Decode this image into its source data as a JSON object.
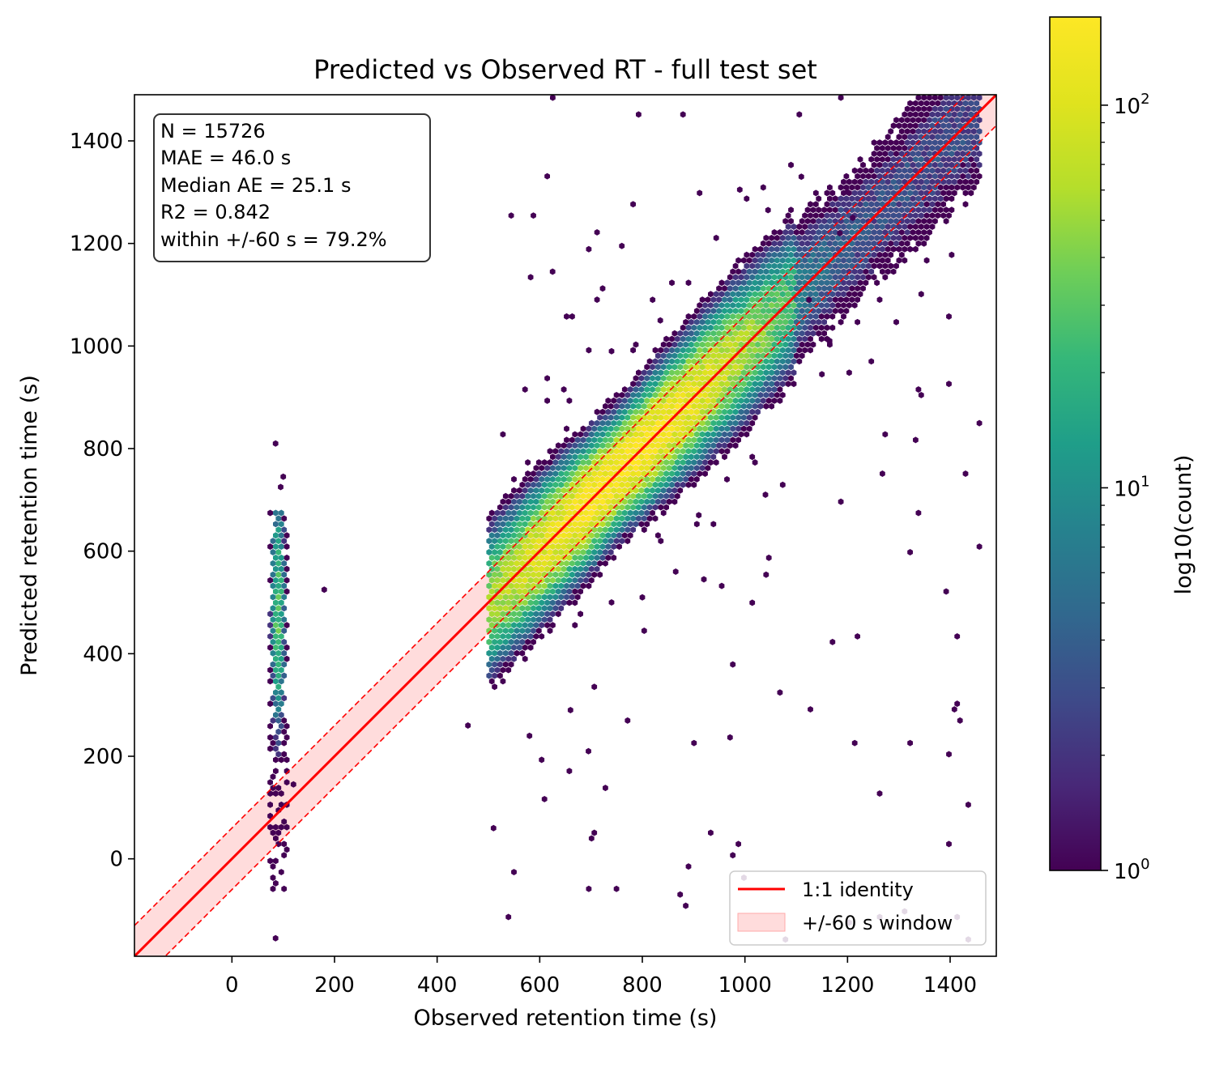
{
  "chart_data": {
    "type": "heatmap",
    "subtype": "hexbin",
    "title": "Predicted vs Observed RT - full test set",
    "xlabel": "Observed retention time (s)",
    "ylabel": "Predicted retention time (s)",
    "xlim": [
      -190,
      1490
    ],
    "ylim": [
      -190,
      1490
    ],
    "xticks": [
      0,
      200,
      400,
      600,
      800,
      1000,
      1200,
      1400
    ],
    "yticks": [
      0,
      200,
      400,
      600,
      800,
      1000,
      1200,
      1400
    ],
    "grid": false,
    "colormap": "viridis",
    "colorbar": {
      "label": "log10(count)",
      "scale": "log",
      "range": [
        1,
        170
      ],
      "tick_labels": [
        "10",
        "10",
        "10"
      ],
      "tick_exponents": [
        "0",
        "1",
        "2"
      ],
      "tick_values": [
        1,
        10,
        100
      ]
    },
    "stats_box": {
      "location": "top-left",
      "lines": [
        "N = 15726",
        "MAE = 46.0 s",
        "Median AE = 25.1 s",
        "R2 = 0.842",
        "within +/-60 s = 79.2%"
      ]
    },
    "legend": {
      "location": "lower-right",
      "entries": [
        {
          "label": "1:1 identity",
          "kind": "line",
          "color": "#ff0000"
        },
        {
          "label": "+/-60 s window",
          "kind": "band",
          "color": "#ffcccc"
        }
      ]
    },
    "identity_line": {
      "slope": 1,
      "intercept": 0,
      "color": "#ff0000"
    },
    "window": {
      "half_width": 60,
      "fill": "#ffdcdc",
      "edge": "#ff0000"
    },
    "clusters": [
      {
        "name": "main-diagonal",
        "x_range": [
          500,
          1460
        ],
        "offset_spread": 45,
        "peak_count": 170
      },
      {
        "name": "early-eluting-column",
        "x_center": 90,
        "y_range": [
          -60,
          810
        ],
        "peak_count": 30
      }
    ],
    "outliers": [
      [
        625,
        1145
      ],
      [
        760,
        1195
      ],
      [
        990,
        1305
      ],
      [
        1045,
        1265
      ],
      [
        1110,
        1330
      ],
      [
        1200,
        1300
      ],
      [
        1210,
        1250
      ],
      [
        1185,
        1220
      ],
      [
        1165,
        1010
      ],
      [
        1150,
        945
      ],
      [
        1125,
        1090
      ],
      [
        865,
        560
      ],
      [
        1040,
        710
      ],
      [
        965,
        740
      ],
      [
        910,
        670
      ],
      [
        920,
        545
      ],
      [
        800,
        510
      ],
      [
        740,
        500
      ],
      [
        695,
        210
      ],
      [
        660,
        290
      ],
      [
        580,
        240
      ],
      [
        510,
        60
      ],
      [
        460,
        260
      ],
      [
        85,
        -155
      ],
      [
        180,
        525
      ],
      [
        120,
        145
      ],
      [
        85,
        810
      ],
      [
        100,
        745
      ],
      [
        95,
        725
      ],
      [
        740,
        990
      ],
      [
        820,
        1090
      ],
      [
        835,
        1050
      ]
    ]
  }
}
